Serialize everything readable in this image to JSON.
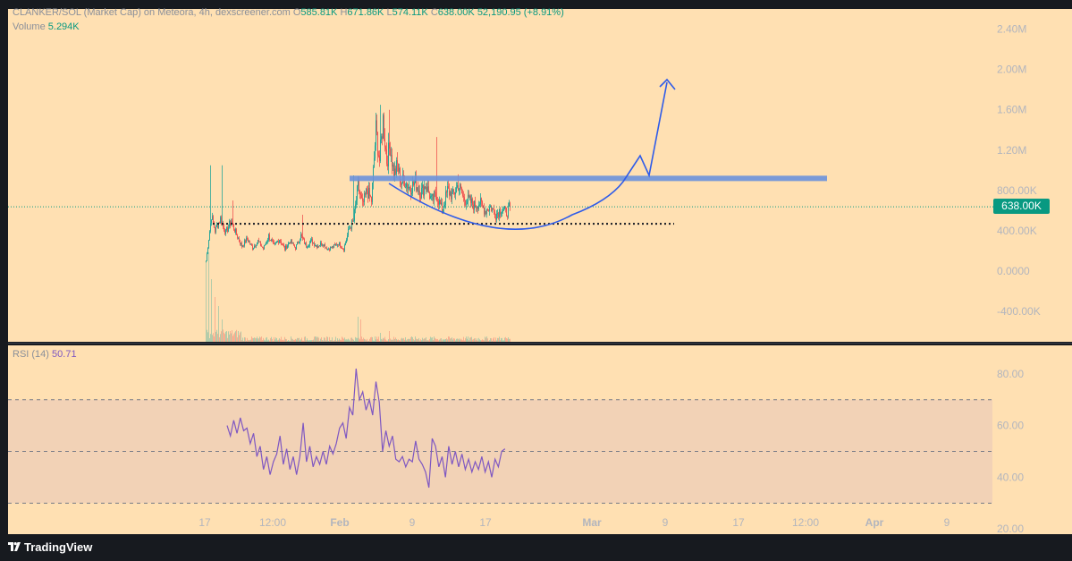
{
  "header": {
    "symbol": "CLANKER/SOL (Market Cap) on Meteora, 4h, dexscreener.com",
    "o_label": "O",
    "o_value": "585.81K",
    "h_label": "H",
    "h_value": "671.86K",
    "l_label": "L",
    "l_value": "574.11K",
    "c_label": "C",
    "c_value": "638.00K",
    "change": "52,190.95 (+8.91%)",
    "volume_label": "Volume",
    "volume_value": "5.294K"
  },
  "price_badge": "638.00K",
  "rsi": {
    "label": "RSI (14)",
    "value": "50.71"
  },
  "branding": {
    "text": "TradingView"
  },
  "colors": {
    "background": "#ffe0b2",
    "up": "#26a69a",
    "down": "#ef5350",
    "rsi_line": "#7e57c2",
    "rsi_band": "#f2d2b6",
    "resistance": "#6c92db",
    "drawing": "#2f5ce9",
    "badge": "#089981"
  },
  "chart_data": [
    {
      "type": "candlestick",
      "price_axis": {
        "ticks": [
          2400000,
          2000000,
          1600000,
          1200000,
          800000,
          400000,
          0,
          -400000
        ],
        "labels": [
          "2.40M",
          "2.00M",
          "1.60M",
          "1.20M",
          "800.00K",
          "400.00K",
          "0.0000",
          "-400.00K"
        ],
        "range": [
          -700000,
          2600000
        ]
      },
      "x_axis": {
        "labels": [
          "17",
          "12:00",
          "Feb",
          "9",
          "17",
          "Mar",
          "9",
          "17",
          "12:00",
          "Apr",
          "9"
        ],
        "bold": [
          "Feb",
          "Mar",
          "Apr"
        ]
      },
      "last_price": 638000,
      "support_level": 470000,
      "resistance_level": 920000,
      "path": [
        [
          0,
          100000
        ],
        [
          6,
          550000
        ],
        [
          10,
          400000
        ],
        [
          16,
          520000
        ],
        [
          22,
          380000
        ],
        [
          28,
          500000
        ],
        [
          34,
          360000
        ],
        [
          40,
          250000
        ],
        [
          46,
          320000
        ],
        [
          52,
          230000
        ],
        [
          58,
          300000
        ],
        [
          64,
          220000
        ],
        [
          70,
          350000
        ],
        [
          76,
          250000
        ],
        [
          82,
          320000
        ],
        [
          88,
          220000
        ],
        [
          94,
          300000
        ],
        [
          100,
          230000
        ],
        [
          106,
          350000
        ],
        [
          112,
          250000
        ],
        [
          118,
          300000
        ],
        [
          124,
          250000
        ],
        [
          130,
          280000
        ],
        [
          136,
          220000
        ],
        [
          142,
          240000
        ],
        [
          148,
          280000
        ],
        [
          154,
          220000
        ],
        [
          160,
          420000
        ],
        [
          165,
          500000
        ],
        [
          170,
          850000
        ],
        [
          175,
          650000
        ],
        [
          180,
          800000
        ],
        [
          185,
          700000
        ],
        [
          190,
          1400000
        ],
        [
          194,
          1100000
        ],
        [
          198,
          1500000
        ],
        [
          202,
          1100000
        ],
        [
          206,
          1250000
        ],
        [
          210,
          950000
        ],
        [
          214,
          1050000
        ],
        [
          218,
          880000
        ],
        [
          222,
          900000
        ],
        [
          228,
          820000
        ],
        [
          234,
          880000
        ],
        [
          240,
          780000
        ],
        [
          246,
          860000
        ],
        [
          252,
          700000
        ],
        [
          258,
          760000
        ],
        [
          264,
          600000
        ],
        [
          270,
          800000
        ],
        [
          276,
          750000
        ],
        [
          282,
          860000
        ],
        [
          288,
          720000
        ],
        [
          294,
          700000
        ],
        [
          300,
          650000
        ],
        [
          306,
          680000
        ],
        [
          312,
          600000
        ],
        [
          318,
          640000
        ],
        [
          324,
          560000
        ],
        [
          330,
          620000
        ],
        [
          336,
          580000
        ],
        [
          340,
          638000
        ]
      ],
      "spikes": [
        {
          "i": 5,
          "high": 1050000
        },
        {
          "i": 18,
          "high": 1050000
        },
        {
          "i": 30,
          "high": 700000
        },
        {
          "i": 108,
          "high": 560000
        },
        {
          "i": 165,
          "high": 950000
        },
        {
          "i": 195,
          "high": 1650000
        },
        {
          "i": 205,
          "high": 1600000
        },
        {
          "i": 258,
          "high": 1330000
        },
        {
          "i": 282,
          "high": 960000
        }
      ],
      "volume_spikes": [
        {
          "i": 0,
          "v": 90
        },
        {
          "i": 3,
          "v": 100
        },
        {
          "i": 6,
          "v": 70
        },
        {
          "i": 10,
          "v": 50
        },
        {
          "i": 14,
          "v": 40
        },
        {
          "i": 18,
          "v": 25
        },
        {
          "i": 170,
          "v": 28
        },
        {
          "i": 173,
          "v": 25
        },
        {
          "i": 195,
          "v": 10
        },
        {
          "i": 205,
          "v": 12
        }
      ]
    },
    {
      "type": "line",
      "indicator": "RSI (14)",
      "y_axis": {
        "ticks": [
          80,
          60,
          40,
          20
        ],
        "labels": [
          "80.00",
          "60.00",
          "40.00",
          "20.00"
        ],
        "range": [
          18,
          91
        ]
      },
      "bands": {
        "upper": 70,
        "middle": 50,
        "lower": 30
      },
      "points": [
        [
          0,
          60
        ],
        [
          4,
          56
        ],
        [
          8,
          62
        ],
        [
          12,
          57
        ],
        [
          16,
          63
        ],
        [
          20,
          58
        ],
        [
          24,
          59
        ],
        [
          28,
          53
        ],
        [
          32,
          57
        ],
        [
          36,
          48
        ],
        [
          40,
          52
        ],
        [
          44,
          43
        ],
        [
          48,
          48
        ],
        [
          52,
          41
        ],
        [
          56,
          46
        ],
        [
          60,
          49
        ],
        [
          64,
          56
        ],
        [
          68,
          45
        ],
        [
          72,
          51
        ],
        [
          76,
          43
        ],
        [
          80,
          48
        ],
        [
          84,
          41
        ],
        [
          88,
          48
        ],
        [
          92,
          61
        ],
        [
          96,
          46
        ],
        [
          100,
          52
        ],
        [
          104,
          44
        ],
        [
          108,
          48
        ],
        [
          112,
          45
        ],
        [
          116,
          50
        ],
        [
          120,
          45
        ],
        [
          124,
          52
        ],
        [
          128,
          49
        ],
        [
          132,
          53
        ],
        [
          136,
          59
        ],
        [
          140,
          61
        ],
        [
          144,
          55
        ],
        [
          148,
          67
        ],
        [
          152,
          64
        ],
        [
          156,
          82
        ],
        [
          160,
          70
        ],
        [
          164,
          73
        ],
        [
          168,
          66
        ],
        [
          172,
          70
        ],
        [
          176,
          64
        ],
        [
          180,
          77
        ],
        [
          184,
          69
        ],
        [
          188,
          50
        ],
        [
          192,
          58
        ],
        [
          196,
          52
        ],
        [
          200,
          56
        ],
        [
          204,
          47
        ],
        [
          208,
          46
        ],
        [
          212,
          48
        ],
        [
          216,
          44
        ],
        [
          220,
          47
        ],
        [
          224,
          46
        ],
        [
          228,
          54
        ],
        [
          232,
          47
        ],
        [
          236,
          45
        ],
        [
          240,
          42
        ],
        [
          244,
          36
        ],
        [
          248,
          55
        ],
        [
          252,
          52
        ],
        [
          256,
          44
        ],
        [
          260,
          48
        ],
        [
          264,
          40
        ],
        [
          268,
          52
        ],
        [
          272,
          45
        ],
        [
          276,
          50
        ],
        [
          280,
          44
        ],
        [
          284,
          49
        ],
        [
          288,
          43
        ],
        [
          292,
          47
        ],
        [
          296,
          42
        ],
        [
          300,
          46
        ],
        [
          304,
          43
        ],
        [
          308,
          48
        ],
        [
          312,
          42
        ],
        [
          316,
          46
        ],
        [
          320,
          40
        ],
        [
          324,
          47
        ],
        [
          328,
          44
        ],
        [
          332,
          50
        ],
        [
          336,
          51
        ]
      ]
    }
  ]
}
